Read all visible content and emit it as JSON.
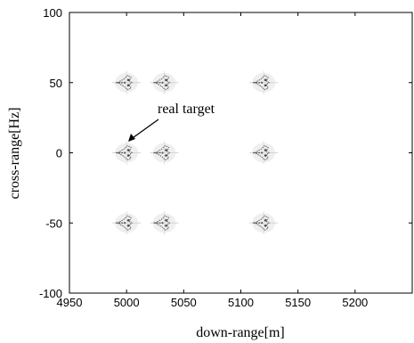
{
  "chart_data": {
    "type": "scatter",
    "xlabel": "down-range[m]",
    "ylabel": "cross-range[Hz]",
    "xlim": [
      4950,
      5250
    ],
    "ylim": [
      -100,
      100
    ],
    "xticks": [
      4950,
      5000,
      5050,
      5100,
      5150,
      5200
    ],
    "yticks": [
      -100,
      -50,
      0,
      50,
      100
    ],
    "grid": false,
    "series": [
      {
        "values": [
          {
            "x": 5000,
            "y": 50
          },
          {
            "x": 5033,
            "y": 50
          },
          {
            "x": 5120,
            "y": 50
          },
          {
            "x": 5000,
            "y": 0
          },
          {
            "x": 5033,
            "y": 0
          },
          {
            "x": 5120,
            "y": 0
          },
          {
            "x": 5000,
            "y": -50
          },
          {
            "x": 5033,
            "y": -50
          },
          {
            "x": 5120,
            "y": -50
          }
        ]
      }
    ],
    "annotations": [
      {
        "text": "real target",
        "target": {
          "x": 5000,
          "y": 0
        }
      }
    ]
  }
}
